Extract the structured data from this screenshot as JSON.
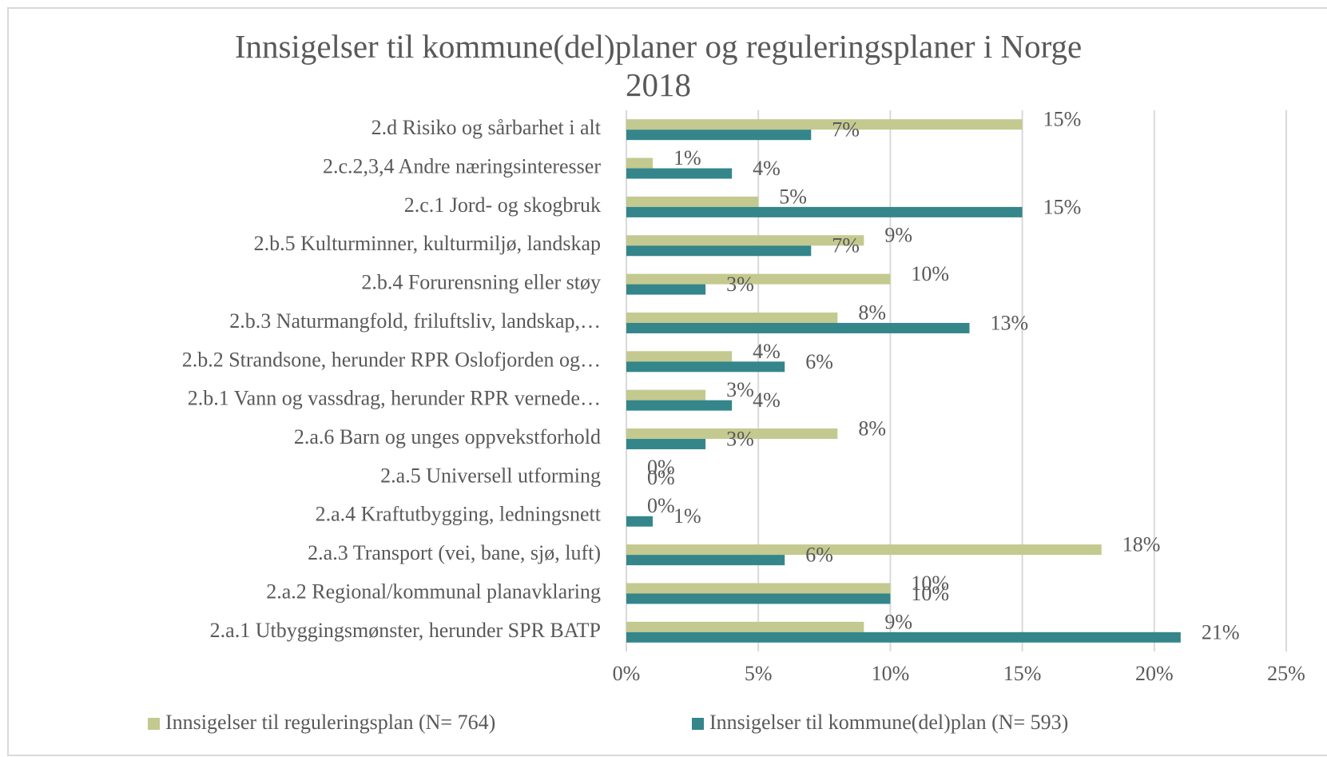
{
  "chart_data": {
    "type": "hbar",
    "title": "Innsigelser til kommune(del)planer og reguleringsplaner i Norge 2018",
    "categories": [
      "2.d Risiko og sårbarhet i alt",
      "2.c.2,3,4 Andre næringsinteresser",
      "2.c.1 Jord- og skogbruk",
      "2.b.5 Kulturminner, kulturmiljø, landskap",
      "2.b.4 Forurensning eller støy",
      "2.b.3 Naturmangfold, friluftsliv, landskap,…",
      "2.b.2 Strandsone, herunder RPR Oslofjorden og…",
      "2.b.1 Vann og vassdrag, herunder RPR vernede…",
      "2.a.6 Barn og unges oppvekstforhold",
      "2.a.5 Universell utforming",
      "2.a.4 Kraftutbygging, ledningsnett",
      "2.a.3 Transport (vei, bane, sjø, luft)",
      "2.a.2 Regional/kommunal planavklaring",
      "2.a.1 Utbyggingsmønster, herunder SPR BATP"
    ],
    "series": [
      {
        "name": "Innsigelser til reguleringsplan (N= 764)",
        "color": "#c4c98f",
        "values": [
          15,
          1,
          5,
          9,
          10,
          8,
          4,
          3,
          8,
          0,
          0,
          18,
          10,
          9
        ],
        "value_labels": [
          "15%",
          "1%",
          "5%",
          "9%",
          "10%",
          "8%",
          "4%",
          "3%",
          "8%",
          "0%",
          "0%",
          "18%",
          "10%",
          "9%"
        ]
      },
      {
        "name": "Innsigelser til kommune(del)plan (N= 593)",
        "color": "#34868a",
        "values": [
          7,
          4,
          15,
          7,
          3,
          13,
          6,
          4,
          3,
          0,
          1,
          6,
          10,
          21
        ],
        "value_labels": [
          "7%",
          "4%",
          "15%",
          "7%",
          "3%",
          "13%",
          "6%",
          "4%",
          "3%",
          "0%",
          "1%",
          "6%",
          "10%",
          "21%"
        ]
      }
    ],
    "xlim": [
      0,
      25
    ],
    "xticks": [
      {
        "value": 0,
        "label": "0%"
      },
      {
        "value": 5,
        "label": "5%"
      },
      {
        "value": 10,
        "label": "10%"
      },
      {
        "value": 15,
        "label": "15%"
      },
      {
        "value": 20,
        "label": "20%"
      },
      {
        "value": 25,
        "label": "25%"
      }
    ],
    "grid": true,
    "legend": "bottom"
  }
}
